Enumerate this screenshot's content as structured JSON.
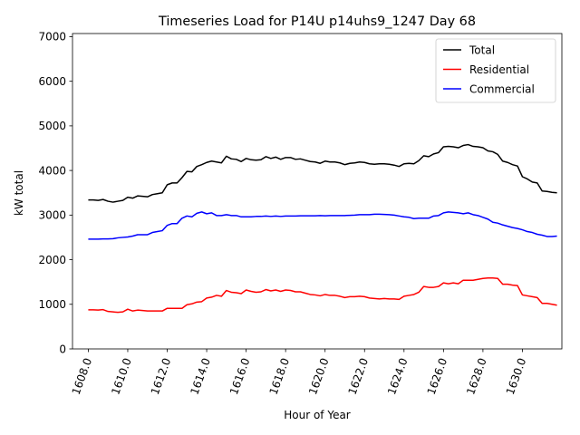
{
  "chart_data": {
    "type": "line",
    "title": "Timeseries Load for P14U p14uhs9_1247  Day 68",
    "xlabel": "Hour of Year",
    "ylabel": "kW total",
    "xlim": [
      1607.2,
      1632.0
    ],
    "ylim": [
      0,
      7070
    ],
    "xticks": [
      1608,
      1610,
      1612,
      1614,
      1616,
      1618,
      1620,
      1622,
      1624,
      1626,
      1628,
      1630
    ],
    "xtick_labels": [
      "1608.0",
      "1610.0",
      "1612.0",
      "1614.0",
      "1616.0",
      "1618.0",
      "1620.0",
      "1622.0",
      "1624.0",
      "1626.0",
      "1628.0",
      "1630.0"
    ],
    "yticks": [
      0,
      1000,
      2000,
      3000,
      4000,
      5000,
      6000,
      7000
    ],
    "ytick_labels": [
      "0",
      "1000",
      "2000",
      "3000",
      "4000",
      "5000",
      "6000",
      "7000"
    ],
    "legend_position": "top-right",
    "x": [
      1608.0,
      1608.25,
      1608.5,
      1608.75,
      1609.0,
      1609.25,
      1609.5,
      1609.75,
      1610.0,
      1610.25,
      1610.5,
      1610.75,
      1611.0,
      1611.25,
      1611.5,
      1611.75,
      1612.0,
      1612.25,
      1612.5,
      1612.75,
      1613.0,
      1613.25,
      1613.5,
      1613.75,
      1614.0,
      1614.25,
      1614.5,
      1614.75,
      1615.0,
      1615.25,
      1615.5,
      1615.75,
      1616.0,
      1616.25,
      1616.5,
      1616.75,
      1617.0,
      1617.25,
      1617.5,
      1617.75,
      1618.0,
      1618.25,
      1618.5,
      1618.75,
      1619.0,
      1619.25,
      1619.5,
      1619.75,
      1620.0,
      1620.25,
      1620.5,
      1620.75,
      1621.0,
      1621.25,
      1621.5,
      1621.75,
      1622.0,
      1622.25,
      1622.5,
      1622.75,
      1623.0,
      1623.25,
      1623.5,
      1623.75,
      1624.0,
      1624.25,
      1624.5,
      1624.75,
      1625.0,
      1625.25,
      1625.5,
      1625.75,
      1626.0,
      1626.25,
      1626.5,
      1626.75,
      1627.0,
      1627.25,
      1627.5,
      1627.75,
      1628.0,
      1628.25,
      1628.5,
      1628.75,
      1629.0,
      1629.25,
      1629.5,
      1629.75,
      1630.0,
      1630.25,
      1630.5,
      1630.75,
      1631.0,
      1631.25,
      1631.5,
      1631.75
    ],
    "series": [
      {
        "name": "Total",
        "color": "#000000",
        "values": [
          3340,
          3340,
          3330,
          3350,
          3310,
          3290,
          3310,
          3330,
          3400,
          3380,
          3430,
          3420,
          3410,
          3460,
          3480,
          3500,
          3680,
          3720,
          3720,
          3840,
          3980,
          3970,
          4090,
          4130,
          4180,
          4210,
          4190,
          4170,
          4320,
          4260,
          4250,
          4200,
          4270,
          4240,
          4230,
          4240,
          4310,
          4270,
          4300,
          4250,
          4290,
          4290,
          4250,
          4260,
          4230,
          4200,
          4190,
          4160,
          4210,
          4190,
          4190,
          4170,
          4130,
          4160,
          4170,
          4190,
          4180,
          4150,
          4140,
          4150,
          4150,
          4140,
          4120,
          4090,
          4150,
          4160,
          4150,
          4220,
          4330,
          4310,
          4370,
          4400,
          4530,
          4540,
          4530,
          4510,
          4560,
          4580,
          4540,
          4530,
          4510,
          4440,
          4420,
          4360,
          4210,
          4180,
          4130,
          4100,
          3860,
          3810,
          3740,
          3720,
          3540,
          3530,
          3510,
          3500
        ]
      },
      {
        "name": "Residential",
        "color": "#ff0000",
        "values": [
          875,
          875,
          870,
          880,
          840,
          830,
          820,
          830,
          890,
          850,
          870,
          860,
          850,
          850,
          850,
          850,
          910,
          910,
          910,
          910,
          990,
          1010,
          1050,
          1060,
          1140,
          1160,
          1200,
          1180,
          1310,
          1270,
          1260,
          1240,
          1320,
          1290,
          1270,
          1280,
          1330,
          1300,
          1320,
          1290,
          1320,
          1310,
          1280,
          1280,
          1250,
          1220,
          1210,
          1190,
          1220,
          1200,
          1200,
          1180,
          1150,
          1170,
          1170,
          1180,
          1170,
          1140,
          1130,
          1120,
          1130,
          1120,
          1120,
          1110,
          1180,
          1200,
          1220,
          1270,
          1400,
          1380,
          1380,
          1400,
          1480,
          1460,
          1480,
          1460,
          1540,
          1540,
          1540,
          1560,
          1580,
          1590,
          1590,
          1580,
          1450,
          1450,
          1430,
          1420,
          1210,
          1190,
          1170,
          1150,
          1020,
          1020,
          1000,
          980
        ]
      },
      {
        "name": "Commercial",
        "color": "#0000ff",
        "values": [
          2460,
          2460,
          2460,
          2465,
          2465,
          2470,
          2490,
          2500,
          2510,
          2530,
          2560,
          2560,
          2560,
          2610,
          2630,
          2650,
          2770,
          2810,
          2810,
          2930,
          2980,
          2960,
          3040,
          3070,
          3030,
          3050,
          2990,
          2990,
          3010,
          2990,
          2990,
          2960,
          2960,
          2960,
          2970,
          2970,
          2980,
          2970,
          2980,
          2970,
          2980,
          2980,
          2980,
          2985,
          2985,
          2985,
          2985,
          2990,
          2985,
          2990,
          2990,
          2990,
          2990,
          2995,
          3000,
          3010,
          3010,
          3010,
          3020,
          3020,
          3015,
          3010,
          3000,
          2980,
          2960,
          2950,
          2920,
          2930,
          2930,
          2930,
          2980,
          2990,
          3050,
          3070,
          3060,
          3050,
          3030,
          3050,
          3010,
          2990,
          2950,
          2910,
          2840,
          2820,
          2780,
          2750,
          2720,
          2700,
          2670,
          2630,
          2610,
          2570,
          2550,
          2520,
          2520,
          2530
        ]
      }
    ]
  }
}
